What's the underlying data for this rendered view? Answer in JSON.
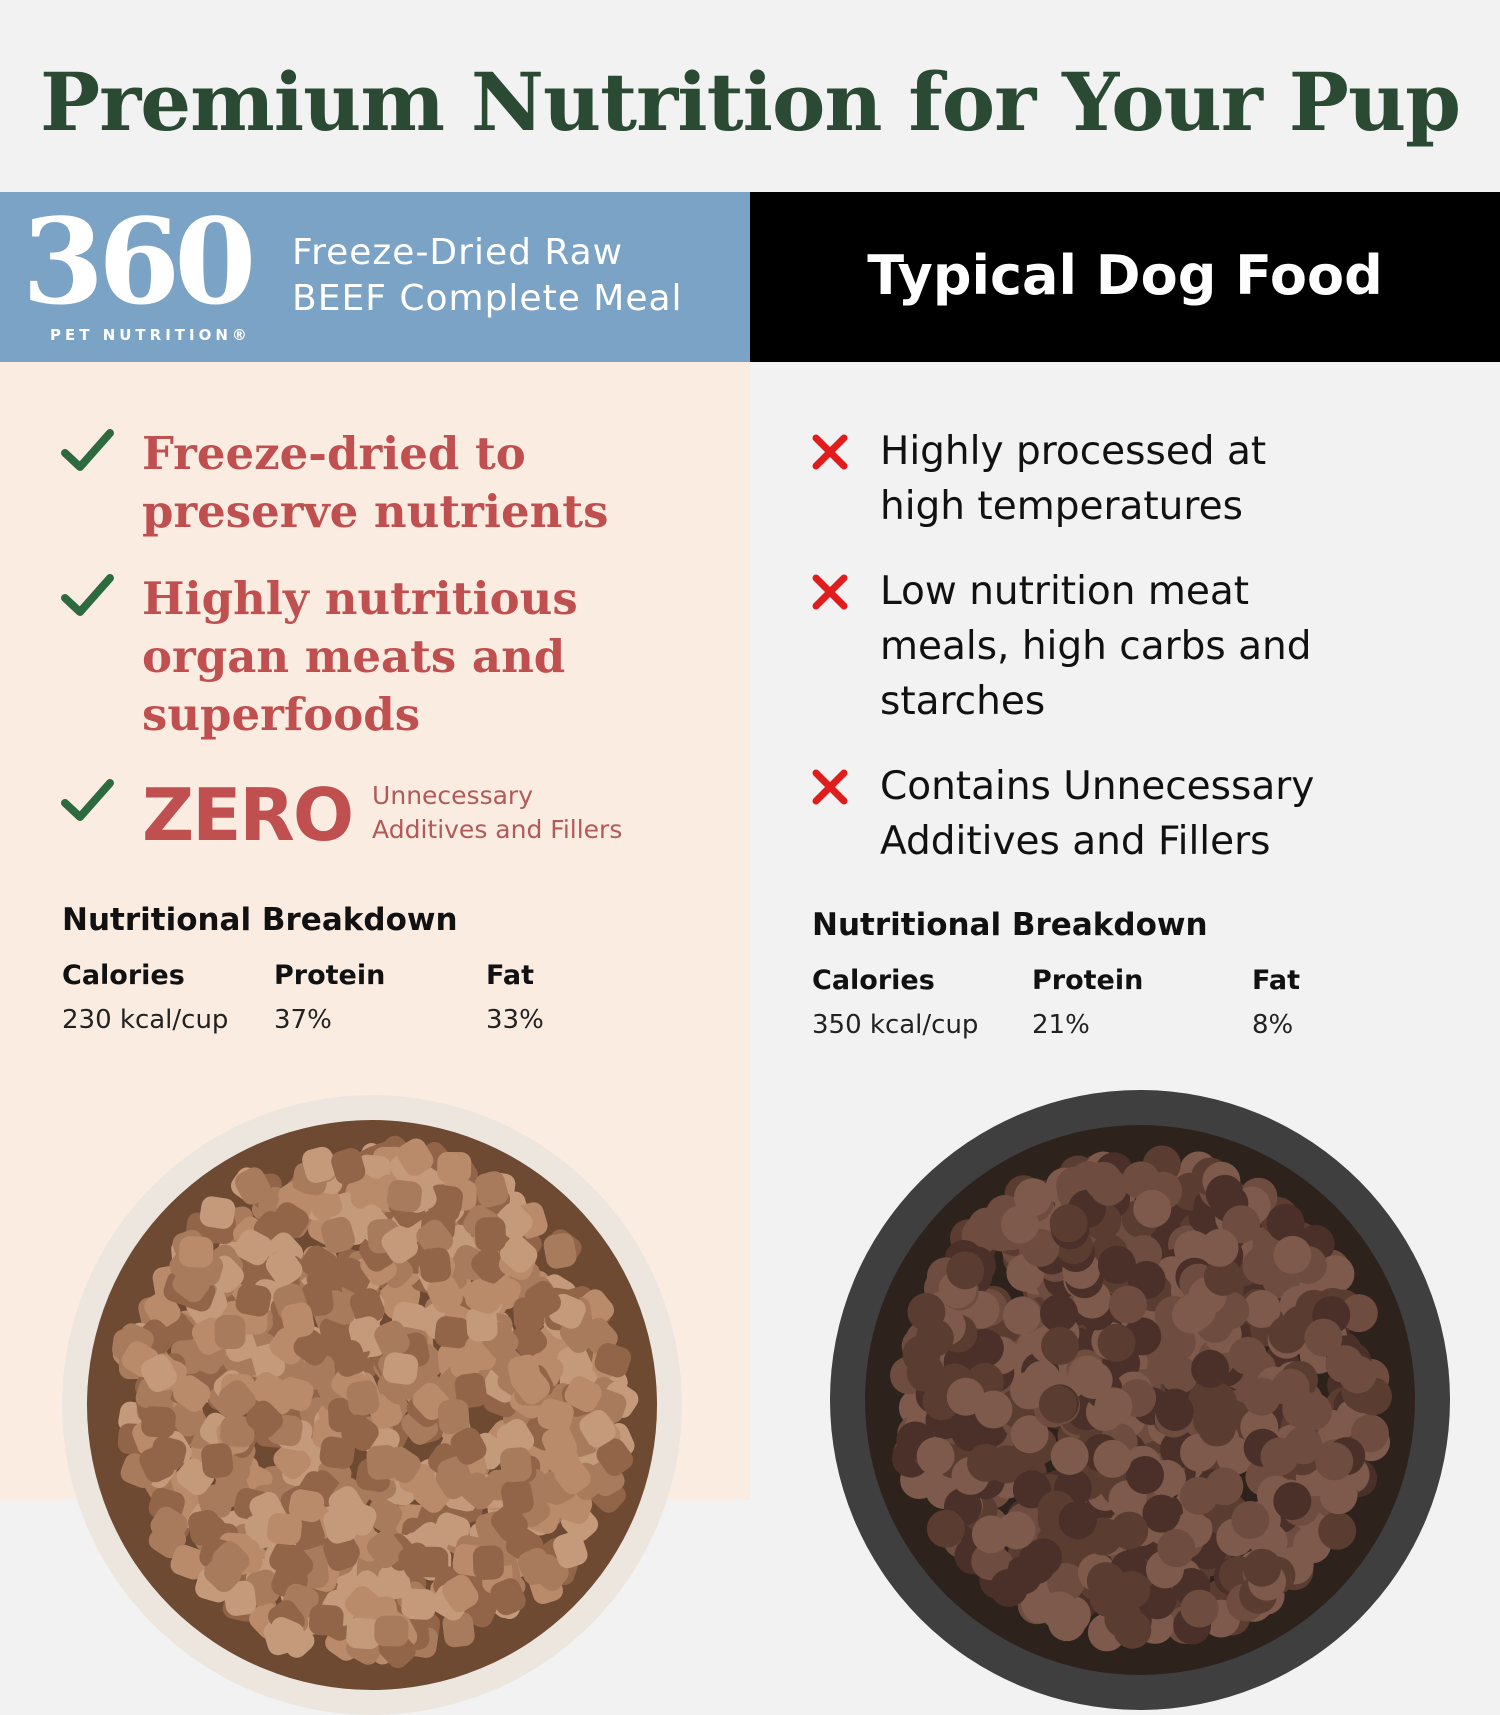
{
  "title": "Premium Nutrition for Your Pup",
  "brand": {
    "logo_number": "360",
    "logo_subtitle": "PET NUTRITION®",
    "product_line1": "Freeze-Dried Raw",
    "product_line2": "BEEF Complete Meal",
    "color": "#7ba3c5"
  },
  "competitor": {
    "title": "Typical Dog Food",
    "color": "#000000"
  },
  "left_points": [
    {
      "icon": "check-icon",
      "lines": [
        "Freeze-dried to",
        "preserve nutrients"
      ]
    },
    {
      "icon": "check-icon",
      "lines": [
        "Highly nutritious",
        "organ meats and",
        "superfoods"
      ]
    },
    {
      "icon": "check-icon",
      "big": "ZERO",
      "lines": [
        "Unnecessary",
        "Additives and Fillers"
      ]
    }
  ],
  "right_points": [
    {
      "icon": "x-icon",
      "lines": [
        "Highly processed at",
        "high temperatures"
      ]
    },
    {
      "icon": "x-icon",
      "lines": [
        "Low nutrition meat",
        "meals, high carbs and",
        "starches"
      ]
    },
    {
      "icon": "x-icon",
      "lines": [
        "Contains Unnecessary",
        "Additives and Fillers"
      ]
    }
  ],
  "left_nutrition": {
    "heading": "Nutritional Breakdown",
    "cols": [
      {
        "label": "Calories",
        "value": "230 kcal/cup"
      },
      {
        "label": "Protein",
        "value": "37%"
      },
      {
        "label": "Fat",
        "value": "33%"
      }
    ]
  },
  "right_nutrition": {
    "heading": "Nutritional Breakdown",
    "cols": [
      {
        "label": "Calories",
        "value": "350 kcal/cup"
      },
      {
        "label": "Protein",
        "value": "21%"
      },
      {
        "label": "Fat",
        "value": "8%"
      }
    ]
  },
  "colors": {
    "title": "#2b4a33",
    "check": "#2d6a3e",
    "x": "#e01c1c",
    "accent_red": "#c0504f"
  }
}
